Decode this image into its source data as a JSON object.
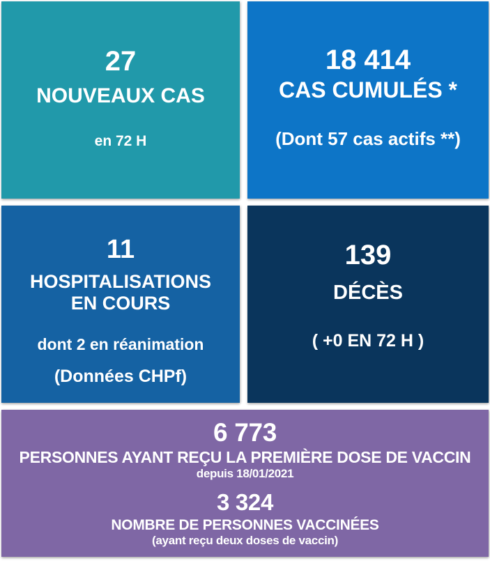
{
  "tiles": {
    "new_cases": {
      "value": "27",
      "label": "NOUVEAUX CAS",
      "sublabel": "en 72 H",
      "color": "#2199AA"
    },
    "cumulative_cases": {
      "value": "18 414",
      "label": "CAS CUMULÉS *",
      "sublabel": "(Dont 57 cas actifs **)",
      "color": "#0D75C7"
    },
    "hospitalizations": {
      "value": "11",
      "label_line1": "HOSPITALISATIONS",
      "label_line2": "EN COURS",
      "sublabel1": "dont 2 en réanimation",
      "sublabel2": "(Données CHPf)",
      "color": "#1562A3"
    },
    "deaths": {
      "value": "139",
      "label": "DÉCÈS",
      "sublabel": "( +0 EN 72 H )",
      "color": "#0A355C"
    },
    "vaccination": {
      "first_dose_value": "6 773",
      "first_dose_label": "PERSONNES AYANT REÇU LA PREMIÈRE DOSE DE VACCIN",
      "first_dose_sublabel": "depuis 18/01/2021",
      "fully_vaccinated_value": "3 324",
      "fully_vaccinated_label": "NOMBRE DE PERSONNES VACCINÉES",
      "fully_vaccinated_sublabel": "(ayant reçu deux doses de vaccin)",
      "color": "#7F67A5"
    }
  },
  "chart_data": {
    "type": "table",
    "title": "COVID-19 statistics dashboard (big-number KPI tiles)",
    "metrics": [
      {
        "label": "Nouveaux cas",
        "value": 27,
        "note": "en 72 H"
      },
      {
        "label": "Cas cumulés *",
        "value": 18414,
        "note": "Dont 57 cas actifs **"
      },
      {
        "label": "Hospitalisations en cours",
        "value": 11,
        "note": "dont 2 en réanimation (Données CHPf)"
      },
      {
        "label": "Décès",
        "value": 139,
        "note": "+0 en 72 H"
      },
      {
        "label": "Personnes ayant reçu la première dose de vaccin",
        "value": 6773,
        "note": "depuis 18/01/2021"
      },
      {
        "label": "Nombre de personnes vaccinées",
        "value": 3324,
        "note": "ayant reçu deux doses de vaccin"
      }
    ],
    "layout_hints": {
      "grid": "2x2 tiles plus full-width bottom tile",
      "tile_colors": [
        "#2199AA",
        "#0D75C7",
        "#1562A3",
        "#0A355C",
        "#7F67A5"
      ],
      "text_color": "#FFFFFF"
    }
  }
}
